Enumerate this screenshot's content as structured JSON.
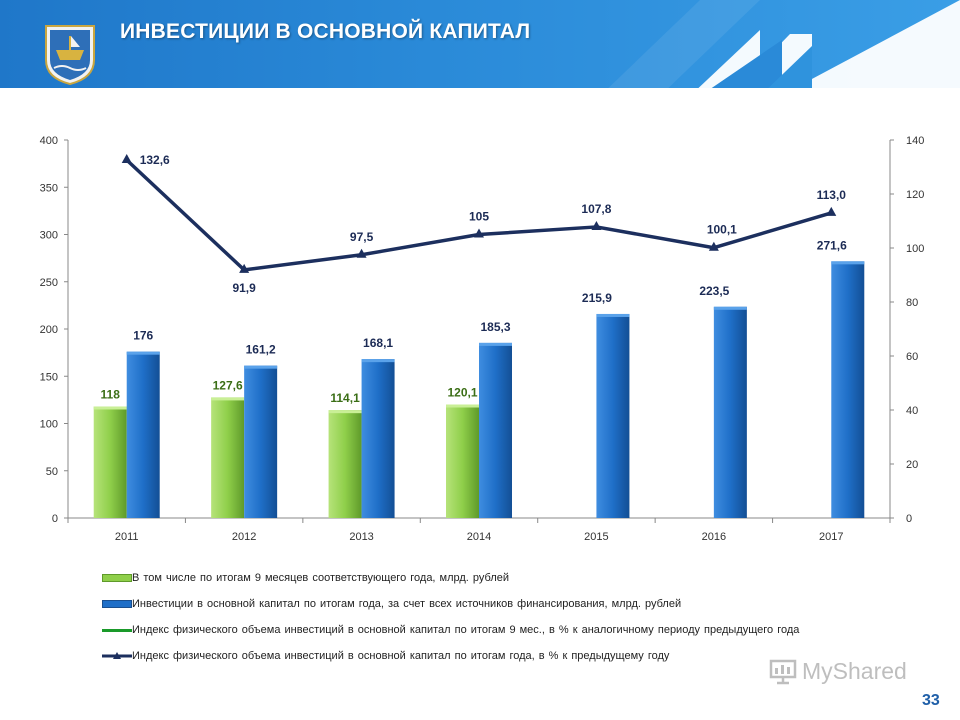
{
  "header": {
    "title": "ИНВЕСТИЦИИ В ОСНОВНОЙ КАПИТАЛ"
  },
  "colors": {
    "header_blue": "#1f77c9",
    "green_bar": "#8fcf4a",
    "blue_bar": "#1f6fc8",
    "line_dark": "#1c2f5e",
    "line_green": "#1a9a2a"
  },
  "chart_data": {
    "type": "bar",
    "categories": [
      "2011",
      "2012",
      "2013",
      "2014",
      "2015",
      "2016",
      "2017"
    ],
    "series": [
      {
        "name": "В том числе по итогам 9 месяцев соответствующего года, млрд. рублей",
        "type": "bar",
        "axis": "left",
        "values": [
          118,
          127.6,
          114.1,
          120.1,
          null,
          null,
          null
        ],
        "labels": [
          "118",
          "127,6",
          "114,1",
          "120,1",
          "",
          "",
          ""
        ]
      },
      {
        "name": "Инвестиции в основной капитал по итогам года, за счет всех источников финансирования, млрд. рублей",
        "type": "bar",
        "axis": "left",
        "values": [
          176,
          161.2,
          168.1,
          185.3,
          215.9,
          223.5,
          271.6
        ],
        "labels": [
          "176",
          "161,2",
          "168,1",
          "185,3",
          "215,9",
          "223,5",
          "271,6"
        ]
      },
      {
        "name": "Индекс физического объема инвестиций в основной капитал по итогам 9 мес., в % к аналогичному периоду предыдущего года",
        "type": "line",
        "axis": "right",
        "values": [
          null,
          null,
          null,
          null,
          null,
          null,
          null
        ],
        "labels": []
      },
      {
        "name": "Индекс физического объема инвестиций в основной капитал по итогам года, в % к предыдущему году",
        "type": "line",
        "axis": "right",
        "values": [
          132.6,
          91.9,
          97.5,
          105,
          107.8,
          100.1,
          113.0
        ],
        "labels": [
          "132,6",
          "91,9",
          "97,5",
          "105",
          "107,8",
          "100,1",
          "113,0"
        ]
      }
    ],
    "y_left": {
      "ylim": [
        0,
        400
      ],
      "ticks": [
        "0",
        "50",
        "100",
        "150",
        "200",
        "250",
        "300",
        "350",
        "400"
      ]
    },
    "y_right": {
      "ylim": [
        0,
        140
      ],
      "ticks": [
        "0",
        "20",
        "40",
        "60",
        "80",
        "100",
        "120",
        "140"
      ]
    },
    "grid": false,
    "legend_position": "bottom"
  },
  "watermark": {
    "text": "MyShared"
  },
  "page": {
    "number": "33"
  }
}
